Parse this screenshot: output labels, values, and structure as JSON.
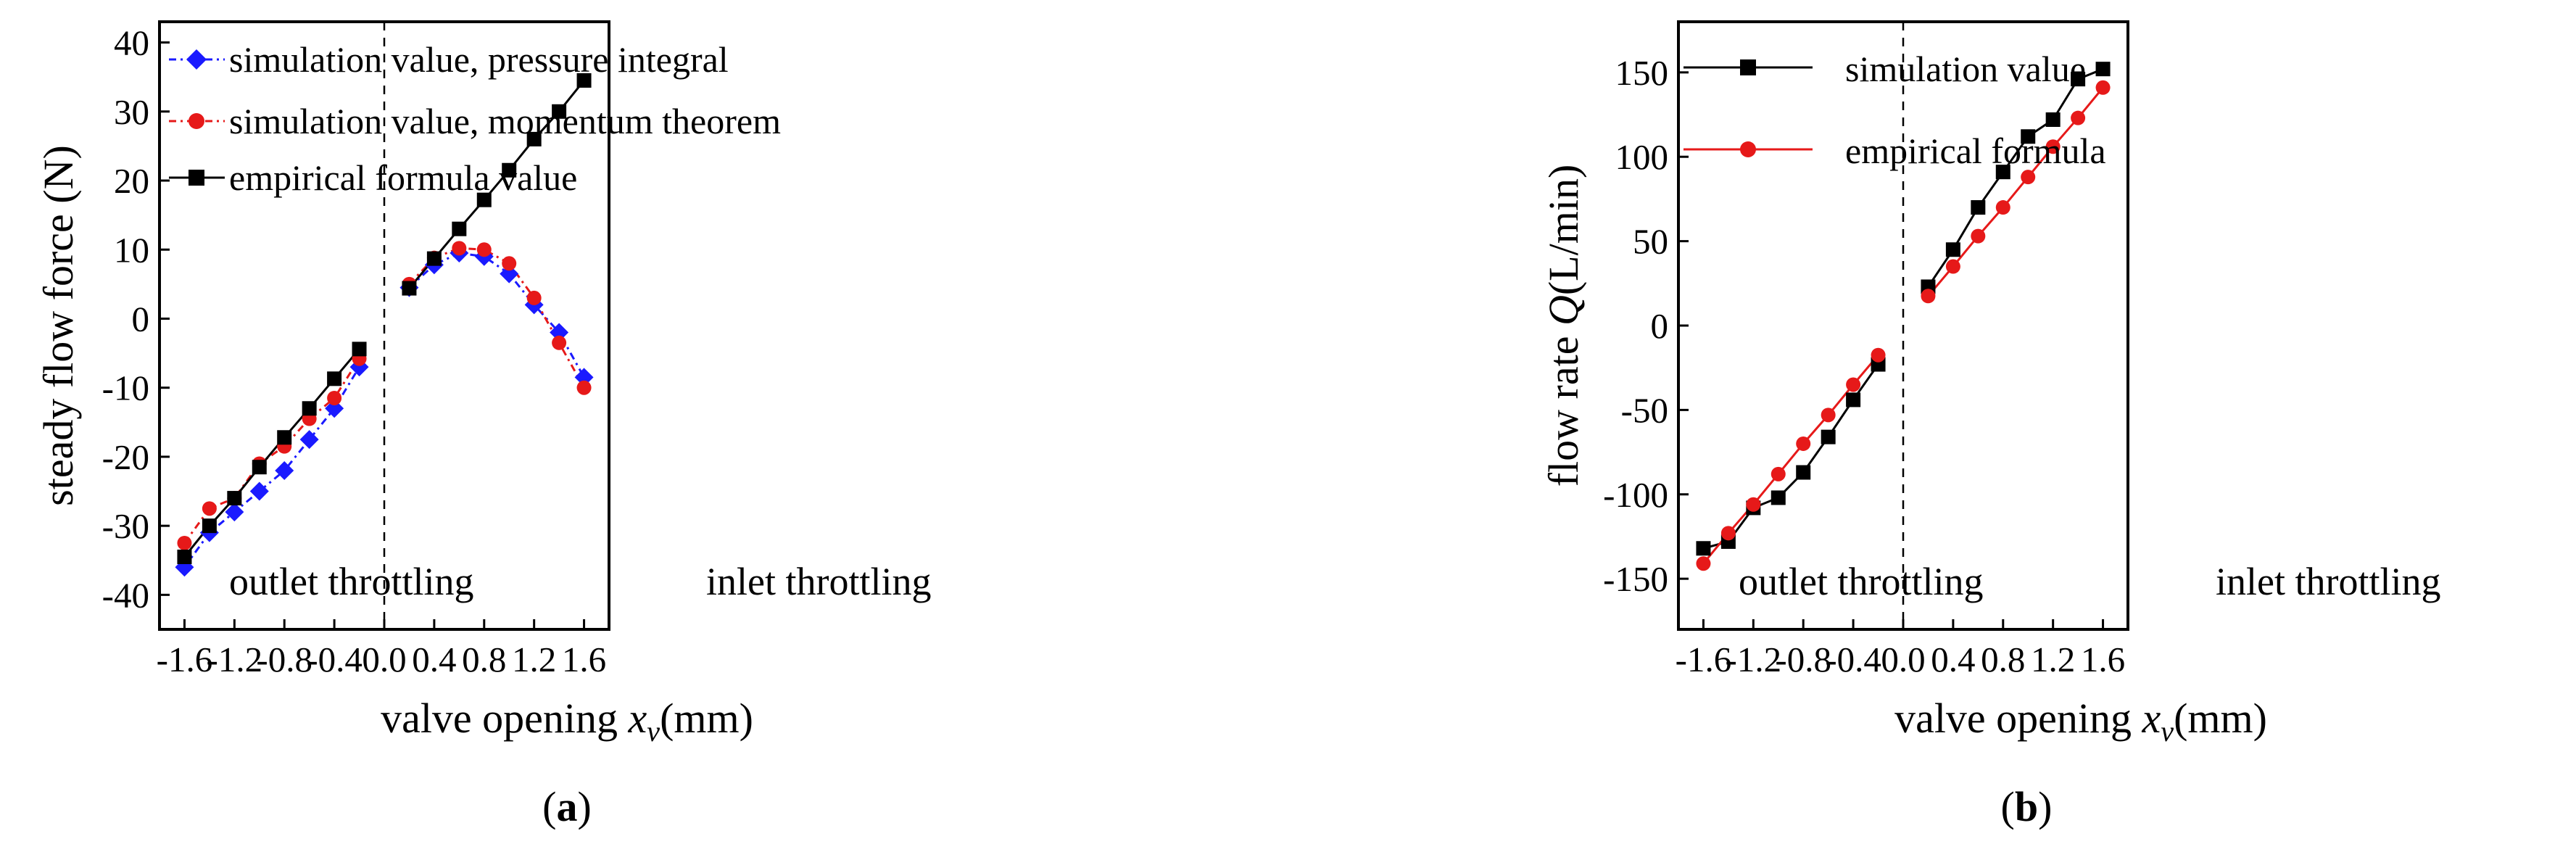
{
  "chart_data": [
    {
      "id": "a",
      "type": "line",
      "caption": {
        "open": "(",
        "letter": "a",
        "close": ")"
      },
      "xlabel": {
        "main": "valve opening ",
        "var": "x",
        "sub": "v",
        "unit": "(mm)"
      },
      "ylabel": "steady flow force (N)",
      "xlim": [
        -1.8,
        1.8
      ],
      "ylim": [
        -45,
        43
      ],
      "xticks": [
        -1.6,
        -1.2,
        -0.8,
        -0.4,
        0.0,
        0.4,
        0.8,
        1.2,
        1.6
      ],
      "xtick_labels": [
        "-1.6",
        "-1.2",
        "-0.8",
        "-0.4",
        "0.0",
        "0.4",
        "0.8",
        "1.2",
        "1.6"
      ],
      "yticks": [
        -40,
        -30,
        -20,
        -10,
        0,
        10,
        20,
        30,
        40
      ],
      "ytick_labels": [
        "-40",
        "-30",
        "-20",
        "-10",
        "0",
        "10",
        "20",
        "30",
        "40"
      ],
      "divider_x": 0.0,
      "regions": {
        "left": "outlet throttling",
        "right": "inlet throttling"
      },
      "series": [
        {
          "name": "simulation value, pressure integral",
          "color": "#1a1aff",
          "marker": "diamond",
          "dash": "dashdot",
          "segments": [
            {
              "x": [
                -1.6,
                -1.4,
                -1.2,
                -1.0,
                -0.8,
                -0.6,
                -0.4,
                -0.2
              ],
              "y": [
                -36,
                -31,
                -28,
                -25,
                -22,
                -17.5,
                -13,
                -7
              ]
            },
            {
              "x": [
                0.2,
                0.4,
                0.6,
                0.8,
                1.0,
                1.2,
                1.4,
                1.6
              ],
              "y": [
                4.5,
                7.8,
                9.5,
                9,
                6.5,
                2,
                -2,
                -8.5
              ]
            }
          ]
        },
        {
          "name": "simulation value, momentum theorem",
          "color": "#e61919",
          "marker": "circle",
          "dash": "dashdot",
          "segments": [
            {
              "x": [
                -1.6,
                -1.4,
                -1.2,
                -1.0,
                -0.8,
                -0.6,
                -0.4,
                -0.2
              ],
              "y": [
                -32.5,
                -27.5,
                -26,
                -21,
                -18.5,
                -14.5,
                -11.5,
                -5.8
              ]
            },
            {
              "x": [
                0.2,
                0.4,
                0.6,
                0.8,
                1.0,
                1.2,
                1.4,
                1.6
              ],
              "y": [
                5,
                8.8,
                10.2,
                10,
                8,
                3,
                -3.5,
                -10
              ]
            }
          ]
        },
        {
          "name": "empirical formula value",
          "color": "#000000",
          "marker": "square",
          "dash": "solid",
          "segments": [
            {
              "x": [
                -1.6,
                -1.4,
                -1.2,
                -1.0,
                -0.8,
                -0.6,
                -0.4,
                -0.2
              ],
              "y": [
                -34.5,
                -30,
                -26,
                -21.5,
                -17.2,
                -13,
                -8.7,
                -4.4
              ]
            },
            {
              "x": [
                0.2,
                0.4,
                0.6,
                0.8,
                1.0,
                1.2,
                1.4,
                1.6
              ],
              "y": [
                4.4,
                8.7,
                13,
                17.2,
                21.5,
                26,
                30,
                34.5
              ]
            }
          ]
        }
      ]
    },
    {
      "id": "b",
      "type": "line",
      "caption": {
        "open": "(",
        "letter": "b",
        "close": ")"
      },
      "xlabel": {
        "main": "valve opening ",
        "var": "x",
        "sub": "v",
        "unit": "(mm)"
      },
      "ylabel": {
        "main": "flow rate ",
        "var": "Q",
        "unit": "(L/min)"
      },
      "xlim": [
        -1.8,
        1.8
      ],
      "ylim": [
        -180,
        180
      ],
      "xticks": [
        -1.6,
        -1.2,
        -0.8,
        -0.4,
        0.0,
        0.4,
        0.8,
        1.2,
        1.6
      ],
      "xtick_labels": [
        "-1.6",
        "-1.2",
        "-0.8",
        "-0.4",
        "0.0",
        "0.4",
        "0.8",
        "1.2",
        "1.6"
      ],
      "yticks": [
        -150,
        -100,
        -50,
        0,
        50,
        100,
        150
      ],
      "ytick_labels": [
        "-150",
        "-100",
        "-50",
        "0",
        "50",
        "100",
        "150"
      ],
      "divider_x": 0.0,
      "regions": {
        "left": "outlet throttling",
        "right": "inlet throttling"
      },
      "series": [
        {
          "name": "simulation value",
          "color": "#000000",
          "marker": "square",
          "dash": "solid",
          "segments": [
            {
              "x": [
                -1.6,
                -1.4,
                -1.2,
                -1.0,
                -0.8,
                -0.6,
                -0.4,
                -0.2
              ],
              "y": [
                -132,
                -128,
                -108,
                -102,
                -87,
                -66,
                -44,
                -23
              ]
            },
            {
              "x": [
                0.2,
                0.4,
                0.6,
                0.8,
                1.0,
                1.2,
                1.4,
                1.6
              ],
              "y": [
                23,
                45,
                70,
                91,
                112,
                122,
                146,
                152
              ]
            }
          ]
        },
        {
          "name": "empirical formula",
          "color": "#e61919",
          "marker": "circle",
          "dash": "solid",
          "segments": [
            {
              "x": [
                -1.6,
                -1.4,
                -1.2,
                -1.0,
                -0.8,
                -0.6,
                -0.4,
                -0.2
              ],
              "y": [
                -141,
                -123,
                -106,
                -88,
                -70,
                -53,
                -35,
                -17.5
              ]
            },
            {
              "x": [
                0.2,
                0.4,
                0.6,
                0.8,
                1.0,
                1.2,
                1.4,
                1.6
              ],
              "y": [
                17.5,
                35,
                53,
                70,
                88,
                106,
                123,
                141
              ]
            }
          ]
        }
      ]
    }
  ]
}
